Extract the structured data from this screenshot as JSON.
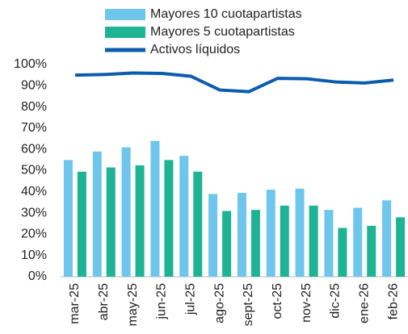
{
  "chart_data": {
    "type": "bar_line",
    "categories": [
      "mar-25",
      "abr-25",
      "may-25",
      "jun-25",
      "jul-25",
      "ago-25",
      "sept-25",
      "oct-25",
      "nov-25",
      "dic-25",
      "ene-26",
      "feb-26"
    ],
    "series": [
      {
        "name": "Mayores 10 cuotapartistas",
        "type": "bar",
        "color": "#6ec6ec",
        "values": [
          55,
          59,
          61,
          64,
          57,
          39,
          39.5,
          41,
          41.5,
          31.5,
          32.5,
          36
        ]
      },
      {
        "name": "Mayores 5 cuotapartistas",
        "type": "bar",
        "color": "#1db394",
        "values": [
          49.5,
          51.5,
          52.5,
          55,
          49.5,
          31,
          31.5,
          33.5,
          33.5,
          23,
          24,
          28
        ]
      },
      {
        "name": "Activos líquidos",
        "type": "line",
        "color": "#0b5cad",
        "values": [
          95,
          95.3,
          96,
          95.8,
          94.5,
          88,
          87.2,
          93.5,
          93.3,
          91.8,
          91.3,
          92.7
        ]
      }
    ],
    "ylim": [
      0,
      100
    ],
    "yticks": [
      {
        "value": 0,
        "label": "0%"
      },
      {
        "value": 10,
        "label": "10%"
      },
      {
        "value": 20,
        "label": "20%"
      },
      {
        "value": 30,
        "label": "30%"
      },
      {
        "value": 40,
        "label": "40%"
      },
      {
        "value": 50,
        "label": "50%"
      },
      {
        "value": 60,
        "label": "60%"
      },
      {
        "value": 70,
        "label": "70%"
      },
      {
        "value": 80,
        "label": "80%"
      },
      {
        "value": 90,
        "label": "90%"
      },
      {
        "value": 100,
        "label": "100%"
      }
    ],
    "grid": false,
    "legend": "top"
  }
}
